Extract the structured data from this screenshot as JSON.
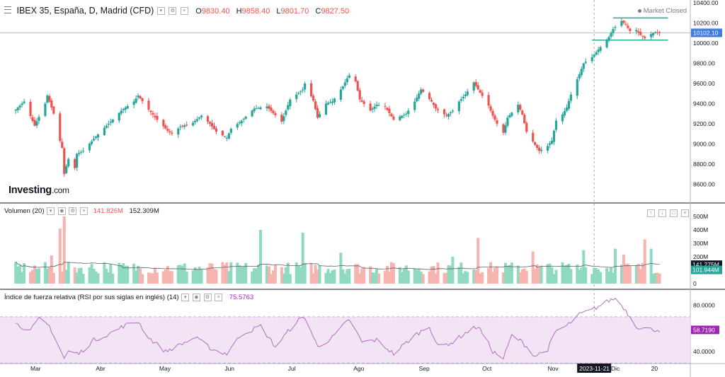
{
  "header": {
    "symbol": "IBEX 35, España, D, Madrid (CFD)",
    "open_label": "O",
    "open": "9830.40",
    "high_label": "H",
    "high": "9858.40",
    "low_label": "L",
    "low": "9801.70",
    "close_label": "C",
    "close": "9827.50",
    "market_status": "Market Closed",
    "logo_main": "Investing",
    "logo_suffix": ".com"
  },
  "volume_pane": {
    "title": "Volumen (20)",
    "value1": "141.826M",
    "value2": "152.309M"
  },
  "rsi_pane": {
    "title": "Índice de fuerza relativa (RSI por sus siglas en inglés) (14)",
    "value": "75.5763"
  },
  "colors": {
    "up": "#26a69a",
    "down": "#ef5350",
    "vol_up": "#8fd9c1",
    "vol_down": "#f7b3ae",
    "rsi_line": "#b46cc7",
    "rsi_band": "#f2e4f5",
    "channel": "#1aa68a",
    "price_tag": "#3e7cde",
    "grid": "#e6e6e6"
  },
  "chart_data": [
    {
      "type": "candlestick",
      "name": "price",
      "ylim": [
        8420,
        10400
      ],
      "y_ticks": [
        "10400.00",
        "10200.00",
        "10000.00",
        "9800.00",
        "9600.00",
        "9400.00",
        "9200.00",
        "9000.00",
        "8800.00",
        "8600.00"
      ],
      "x_ticks": [
        "Mar",
        "Abr",
        "May",
        "Jun",
        "Jul",
        "Ago",
        "Sep",
        "Oct",
        "Nov",
        "Dic",
        "20"
      ],
      "last_price_label": "10102.10",
      "cursor_date_label": "2023-11-21",
      "channel_upper": 10250,
      "channel_lower": 10030,
      "anchors": [
        [
          "Feb-20",
          9340
        ],
        [
          "Feb-24",
          9420
        ],
        [
          "Mar-01",
          9180
        ],
        [
          "Mar-06",
          9400
        ],
        [
          "Mar-07",
          9480
        ],
        [
          "Mar-10",
          9300
        ],
        [
          "Mar-13",
          9030
        ],
        [
          "Mar-14",
          8960
        ],
        [
          "Mar-15",
          8700
        ],
        [
          "Mar-16",
          8780
        ],
        [
          "Mar-17",
          8850
        ],
        [
          "Mar-20",
          8760
        ],
        [
          "Mar-21",
          8900
        ],
        [
          "Mar-24",
          8930
        ],
        [
          "Mar-29",
          9050
        ],
        [
          "Apr-03",
          9160
        ],
        [
          "Apr-06",
          9220
        ],
        [
          "Apr-11",
          9330
        ],
        [
          "Apr-17",
          9420
        ],
        [
          "Apr-19",
          9480
        ],
        [
          "Apr-24",
          9340
        ],
        [
          "Apr-28",
          9240
        ],
        [
          "May-03",
          9130
        ],
        [
          "May-05",
          9100
        ],
        [
          "May-09",
          9170
        ],
        [
          "May-15",
          9210
        ],
        [
          "May-19",
          9280
        ],
        [
          "May-23",
          9200
        ],
        [
          "May-26",
          9120
        ],
        [
          "May-31",
          9060
        ],
        [
          "Jun-02",
          9150
        ],
        [
          "Jun-07",
          9230
        ],
        [
          "Jun-13",
          9350
        ],
        [
          "Jun-19",
          9370
        ],
        [
          "Jun-26",
          9220
        ],
        [
          "Jun-30",
          9440
        ],
        [
          "Jul-06",
          9540
        ],
        [
          "Jul-07",
          9600
        ],
        [
          "Jul-11",
          9430
        ],
        [
          "Jul-13",
          9260
        ],
        [
          "Jul-17",
          9400
        ],
        [
          "Jul-20",
          9420
        ],
        [
          "Jul-25",
          9570
        ],
        [
          "Jul-27",
          9650
        ],
        [
          "Jul-28",
          9680
        ],
        [
          "Jul-31",
          9620
        ],
        [
          "Aug-02",
          9440
        ],
        [
          "Aug-07",
          9330
        ],
        [
          "Aug-10",
          9390
        ],
        [
          "Aug-14",
          9370
        ],
        [
          "Aug-18",
          9240
        ],
        [
          "Aug-24",
          9300
        ],
        [
          "Aug-28",
          9420
        ],
        [
          "Aug-31",
          9540
        ],
        [
          "Sep-05",
          9420
        ],
        [
          "Sep-07",
          9350
        ],
        [
          "Sep-12",
          9280
        ],
        [
          "Sep-15",
          9330
        ],
        [
          "Sep-18",
          9420
        ],
        [
          "Sep-21",
          9490
        ],
        [
          "Sep-25",
          9610
        ],
        [
          "Sep-27",
          9540
        ],
        [
          "Oct-02",
          9380
        ],
        [
          "Oct-04",
          9280
        ],
        [
          "Oct-06",
          9200
        ],
        [
          "Oct-09",
          9110
        ],
        [
          "Oct-11",
          9260
        ],
        [
          "Oct-13",
          9310
        ],
        [
          "Oct-16",
          9390
        ],
        [
          "Oct-18",
          9290
        ],
        [
          "Oct-20",
          9120
        ],
        [
          "Oct-24",
          8990
        ],
        [
          "Oct-26",
          8930
        ],
        [
          "Oct-30",
          8980
        ],
        [
          "Nov-01",
          9030
        ],
        [
          "Nov-03",
          9230
        ],
        [
          "Nov-06",
          9290
        ],
        [
          "Nov-08",
          9360
        ],
        [
          "Nov-10",
          9490
        ],
        [
          "Nov-14",
          9690
        ],
        [
          "Nov-16",
          9800
        ],
        [
          "Nov-20",
          9860
        ],
        [
          "Nov-24",
          9960
        ],
        [
          "Nov-28",
          10060
        ],
        [
          "Nov-30",
          10140
        ],
        [
          "Dec-04",
          10220
        ],
        [
          "Dec-06",
          10180
        ],
        [
          "Dec-08",
          10120
        ],
        [
          "Dec-11",
          10130
        ],
        [
          "Dec-13",
          10080
        ],
        [
          "Dec-15",
          10050
        ],
        [
          "Dec-18",
          10090
        ],
        [
          "Dec-20",
          10110
        ],
        [
          "Dec-22",
          10102
        ]
      ]
    },
    {
      "type": "bar",
      "name": "volume",
      "y_ticks": [
        "500M",
        "400M",
        "300M",
        "200M",
        "100M",
        "0"
      ],
      "ylim": [
        0,
        500
      ],
      "ma_label": "141.275M",
      "last_label": "101.944M",
      "spikes": [
        [
          "Mar-09",
          210
        ],
        [
          "Mar-13",
          410
        ],
        [
          "Mar-15",
          500
        ],
        [
          "Apr-03",
          160
        ],
        [
          "Jun-16",
          400
        ],
        [
          "Jul-06",
          380
        ],
        [
          "Jul-24",
          230
        ],
        [
          "Sep-15",
          200
        ],
        [
          "Sep-27",
          340
        ],
        [
          "Oct-23",
          240
        ],
        [
          "Nov-16",
          250
        ],
        [
          "Dec-01",
          260
        ],
        [
          "Dec-05",
          215
        ],
        [
          "Dec-15",
          330
        ],
        [
          "Dec-18",
          260
        ]
      ],
      "base_level": 130
    },
    {
      "type": "line",
      "name": "rsi",
      "ylim": [
        32,
        92
      ],
      "y_ticks": [
        "80.0000",
        "60.0000",
        "40.0000"
      ],
      "band": [
        30,
        70
      ],
      "last_label": "58.7190",
      "anchors": [
        [
          "Feb-20",
          64
        ],
        [
          "Feb-27",
          58
        ],
        [
          "Mar-03",
          68
        ],
        [
          "Mar-08",
          62
        ],
        [
          "Mar-13",
          42
        ],
        [
          "Mar-15",
          34
        ],
        [
          "Mar-17",
          40
        ],
        [
          "Mar-22",
          38
        ],
        [
          "Mar-29",
          50
        ],
        [
          "Apr-05",
          55
        ],
        [
          "Apr-12",
          62
        ],
        [
          "Apr-19",
          66
        ],
        [
          "Apr-24",
          52
        ],
        [
          "May-02",
          40
        ],
        [
          "May-09",
          46
        ],
        [
          "May-16",
          52
        ],
        [
          "May-24",
          42
        ],
        [
          "May-31",
          38
        ],
        [
          "Jun-07",
          55
        ],
        [
          "Jun-16",
          62
        ],
        [
          "Jun-23",
          44
        ],
        [
          "Jul-03",
          66
        ],
        [
          "Jul-07",
          70
        ],
        [
          "Jul-13",
          44
        ],
        [
          "Jul-20",
          52
        ],
        [
          "Jul-28",
          68
        ],
        [
          "Aug-03",
          48
        ],
        [
          "Aug-10",
          50
        ],
        [
          "Aug-18",
          38
        ],
        [
          "Aug-28",
          54
        ],
        [
          "Sep-04",
          62
        ],
        [
          "Sep-08",
          44
        ],
        [
          "Sep-15",
          48
        ],
        [
          "Sep-21",
          56
        ],
        [
          "Sep-27",
          62
        ],
        [
          "Oct-04",
          40
        ],
        [
          "Oct-09",
          34
        ],
        [
          "Oct-13",
          54
        ],
        [
          "Oct-18",
          48
        ],
        [
          "Oct-24",
          36
        ],
        [
          "Oct-30",
          42
        ],
        [
          "Nov-03",
          58
        ],
        [
          "Nov-08",
          62
        ],
        [
          "Nov-14",
          72
        ],
        [
          "Nov-20",
          76
        ],
        [
          "Nov-24",
          80
        ],
        [
          "Nov-28",
          84
        ],
        [
          "Dec-01",
          86
        ],
        [
          "Dec-05",
          78
        ],
        [
          "Dec-08",
          70
        ],
        [
          "Dec-11",
          62
        ],
        [
          "Dec-14",
          60
        ],
        [
          "Dec-18",
          59
        ],
        [
          "Dec-22",
          58.7
        ]
      ]
    }
  ]
}
